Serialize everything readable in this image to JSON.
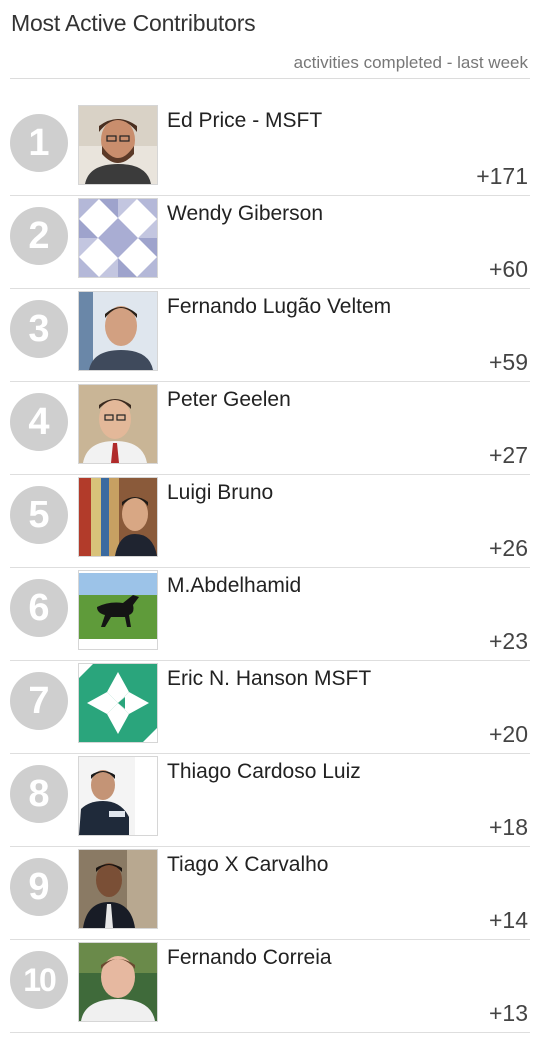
{
  "header": {
    "title": "Most Active Contributors",
    "subtitle": "activities completed - last week"
  },
  "contributors": [
    {
      "rank": "1",
      "name": "Ed Price - MSFT",
      "score": "+171"
    },
    {
      "rank": "2",
      "name": "Wendy Giberson",
      "score": "+60"
    },
    {
      "rank": "3",
      "name": "Fernando Lugão Veltem",
      "score": "+59"
    },
    {
      "rank": "4",
      "name": "Peter Geelen",
      "score": "+27"
    },
    {
      "rank": "5",
      "name": "Luigi Bruno",
      "score": "+26"
    },
    {
      "rank": "6",
      "name": "M.Abdelhamid",
      "score": "+23"
    },
    {
      "rank": "7",
      "name": "Eric N. Hanson MSFT",
      "score": "+20"
    },
    {
      "rank": "8",
      "name": "Thiago Cardoso Luiz",
      "score": "+18"
    },
    {
      "rank": "9",
      "name": "Tiago X Carvalho",
      "score": "+14"
    },
    {
      "rank": "10",
      "name": "Fernando Correia",
      "score": "+13"
    }
  ],
  "colors": {
    "rank_badge": "#cfcfcf",
    "divider": "#dedede",
    "generated_avatar_teal": "#2aa57c",
    "generated_avatar_lavender": "#b4b8d8"
  }
}
